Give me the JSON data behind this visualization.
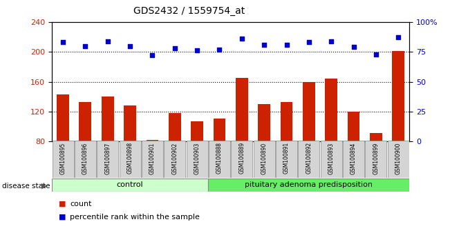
{
  "title": "GDS2432 / 1559754_at",
  "samples": [
    "GSM100895",
    "GSM100896",
    "GSM100897",
    "GSM100898",
    "GSM100901",
    "GSM100902",
    "GSM100903",
    "GSM100888",
    "GSM100889",
    "GSM100890",
    "GSM100891",
    "GSM100892",
    "GSM100893",
    "GSM100894",
    "GSM100899",
    "GSM100900"
  ],
  "counts": [
    143,
    133,
    140,
    128,
    82,
    118,
    107,
    111,
    165,
    130,
    133,
    160,
    164,
    120,
    91,
    201
  ],
  "percentiles": [
    83,
    80,
    84,
    80,
    72,
    78,
    76,
    77,
    86,
    81,
    81,
    83,
    84,
    79,
    73,
    87
  ],
  "ctrl_count": 7,
  "ylim_left": [
    80,
    240
  ],
  "ylim_right": [
    0,
    100
  ],
  "yticks_left": [
    80,
    120,
    160,
    200,
    240
  ],
  "yticks_right": [
    0,
    25,
    50,
    75,
    100
  ],
  "ytick_labels_right": [
    "0",
    "25",
    "50",
    "75",
    "100%"
  ],
  "bar_color": "#cc2200",
  "dot_color": "#0000cc",
  "ctrl_label": "control",
  "pit_label": "pituitary adenoma predisposition",
  "ctrl_color": "#ccffcc",
  "pit_color": "#66ee66",
  "disease_state_label": "disease state",
  "legend_count_label": "count",
  "legend_pct_label": "percentile rank within the sample"
}
